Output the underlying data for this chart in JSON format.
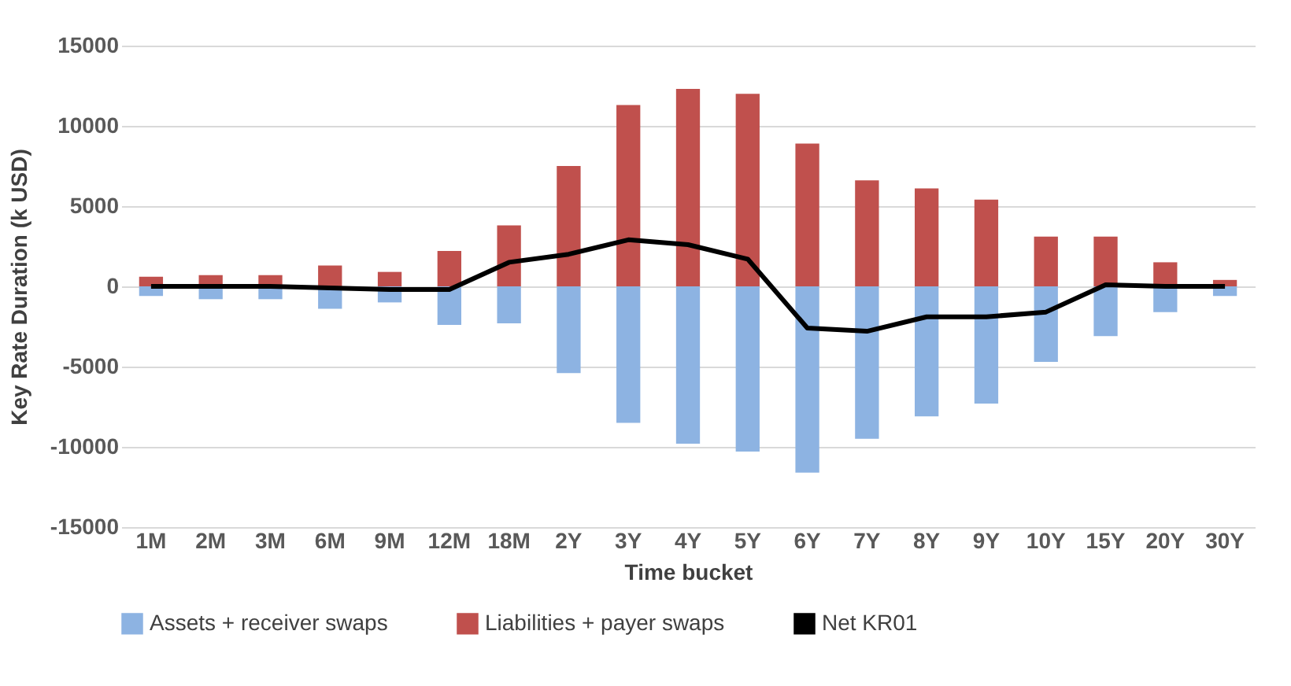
{
  "chart_data": {
    "type": "bar",
    "stacked": true,
    "xlabel": "Time bucket",
    "ylabel": "Key Rate Duration (k USD)",
    "categories": [
      "1M",
      "2M",
      "3M",
      "6M",
      "9M",
      "12M",
      "18M",
      "2Y",
      "3Y",
      "4Y",
      "5Y",
      "6Y",
      "7Y",
      "8Y",
      "9Y",
      "10Y",
      "15Y",
      "20Y",
      "30Y"
    ],
    "series": [
      {
        "name": "Assets + receiver swaps",
        "color": "#8db3e2",
        "values": [
          -600,
          -800,
          -800,
          -1400,
          -1000,
          -2400,
          -2300,
          -5400,
          -8500,
          -9800,
          -10300,
          -11600,
          -9500,
          -8100,
          -7300,
          -4700,
          -3100,
          -1600,
          -600
        ]
      },
      {
        "name": "Liabilities + payer swaps",
        "color": "#c0504d",
        "values": [
          600,
          700,
          700,
          1300,
          900,
          2200,
          3800,
          7500,
          11300,
          12300,
          12000,
          8900,
          6600,
          6100,
          5400,
          3100,
          3100,
          1500,
          400
        ]
      },
      {
        "name": "Net KR01",
        "type": "line",
        "color": "#000000",
        "values": [
          0,
          0,
          0,
          -100,
          -200,
          -200,
          1500,
          2000,
          2900,
          2600,
          1700,
          -2600,
          -2800,
          -1900,
          -1900,
          -1600,
          100,
          0,
          0
        ]
      }
    ],
    "ylim": [
      -15000,
      15000
    ],
    "yticks": [
      -15000,
      -10000,
      -5000,
      0,
      5000,
      10000,
      15000
    ],
    "grid": "y",
    "legend": "bottom",
    "marker": "none",
    "line_style": "solid"
  }
}
